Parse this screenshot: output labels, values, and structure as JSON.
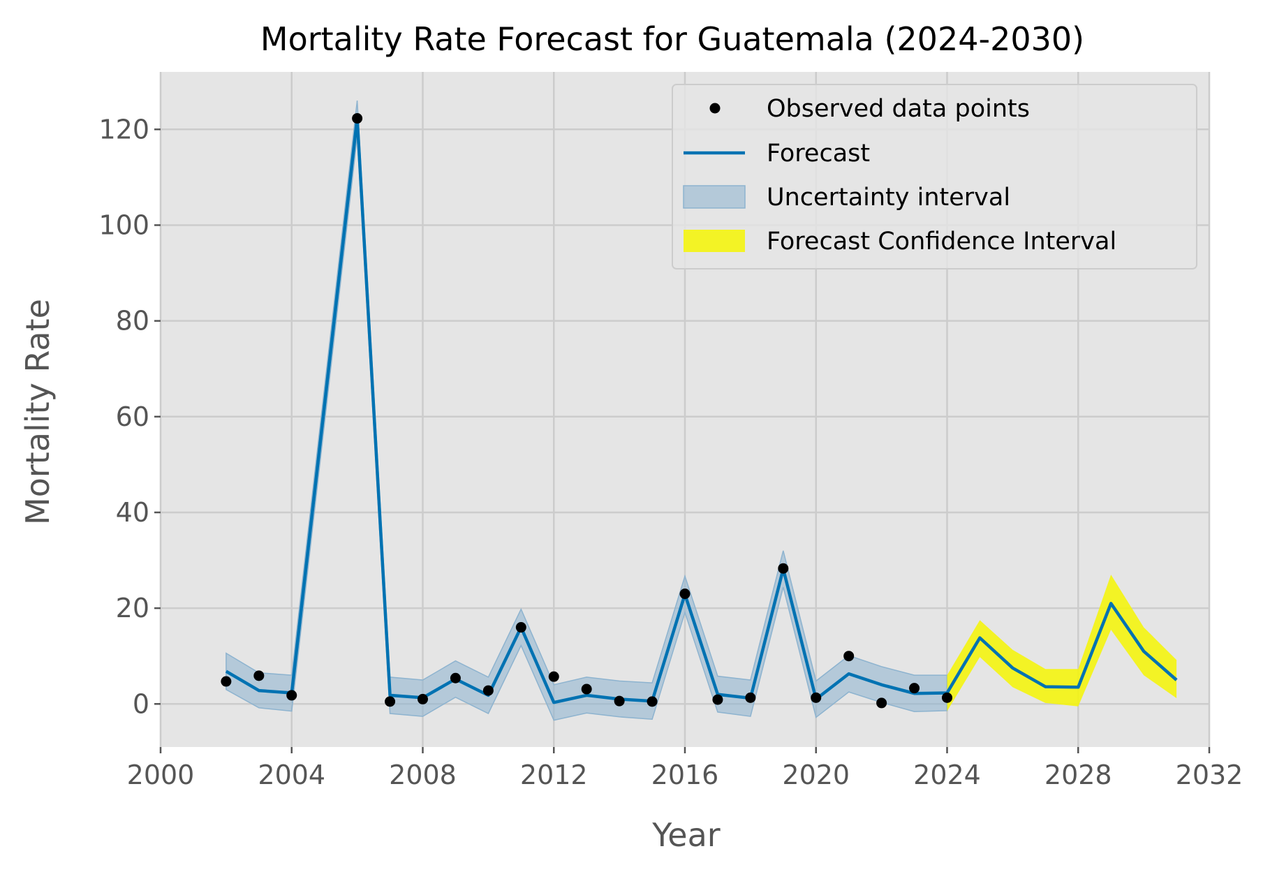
{
  "chart_data": {
    "type": "line",
    "title": "Mortality Rate Forecast for Guatemala (2024-2030)",
    "xlabel": "Year",
    "ylabel": "Mortality Rate",
    "xlim": [
      2000,
      2032
    ],
    "ylim": [
      -9,
      132
    ],
    "xticks": [
      "2000",
      "2004",
      "2008",
      "2012",
      "2016",
      "2020",
      "2024",
      "2028",
      "2032"
    ],
    "yticks": [
      "0",
      "20",
      "40",
      "60",
      "80",
      "100",
      "120"
    ],
    "grid": true,
    "legend_position": "top-right",
    "colors": {
      "background": "#e5e5e5",
      "grid": "#cccccc",
      "observed": "#000000",
      "forecast": "#0072b2",
      "uncertainty": "#8db3cf",
      "confidence": "#f5f50a"
    },
    "legend": [
      {
        "label": "Observed data points",
        "kind": "marker"
      },
      {
        "label": "Forecast",
        "kind": "line"
      },
      {
        "label": "Uncertainty interval",
        "kind": "band"
      },
      {
        "label": "Forecast Confidence Interval",
        "kind": "confidence"
      }
    ],
    "observed": {
      "x": [
        2002,
        2003,
        2004,
        2006,
        2007,
        2008,
        2009,
        2010,
        2011,
        2012,
        2013,
        2014,
        2015,
        2016,
        2017,
        2018,
        2019,
        2020,
        2021,
        2022,
        2023,
        2024
      ],
      "y": [
        4.7,
        5.9,
        1.8,
        122.3,
        0.5,
        1.0,
        5.4,
        2.8,
        16.0,
        5.7,
        3.1,
        0.6,
        0.5,
        23.0,
        0.9,
        1.3,
        28.3,
        1.3,
        10.0,
        0.2,
        3.3,
        1.3
      ]
    },
    "forecast": {
      "x": [
        2002,
        2003,
        2004,
        2006,
        2007,
        2008,
        2009,
        2010,
        2011,
        2012,
        2013,
        2014,
        2015,
        2016,
        2017,
        2018,
        2019,
        2020,
        2021,
        2022,
        2023,
        2024,
        2025,
        2026,
        2027,
        2028,
        2029,
        2030,
        2031
      ],
      "y": [
        6.8,
        2.8,
        2.3,
        122.3,
        1.8,
        1.3,
        5.2,
        1.8,
        16.0,
        0.3,
        1.8,
        1.0,
        0.6,
        22.9,
        2.0,
        1.2,
        28.2,
        1.0,
        6.3,
        4.0,
        2.2,
        2.3,
        13.8,
        7.5,
        3.6,
        3.5,
        21.0,
        11.0,
        5.0
      ]
    },
    "uncertainty_interval": {
      "x": [
        2002,
        2003,
        2004,
        2006,
        2007,
        2008,
        2009,
        2010,
        2011,
        2012,
        2013,
        2014,
        2015,
        2016,
        2017,
        2018,
        2019,
        2020,
        2021,
        2022,
        2023,
        2024
      ],
      "lower": [
        3.0,
        -0.8,
        -1.5,
        118.5,
        -2.0,
        -2.6,
        1.4,
        -2.0,
        12.2,
        -3.4,
        -1.9,
        -2.7,
        -3.2,
        19.1,
        -1.7,
        -2.6,
        24.4,
        -2.8,
        2.5,
        0.3,
        -1.6,
        -1.4
      ],
      "upper": [
        10.6,
        6.5,
        6.0,
        126.0,
        5.6,
        5.0,
        9.0,
        5.6,
        19.8,
        4.0,
        5.6,
        4.8,
        4.4,
        26.7,
        5.8,
        5.0,
        32.0,
        4.8,
        10.1,
        7.8,
        6.0,
        6.0
      ]
    },
    "confidence_interval": {
      "x": [
        2024,
        2025,
        2026,
        2027,
        2028,
        2029,
        2030,
        2031
      ],
      "lower": [
        -1.5,
        9.8,
        3.5,
        0.2,
        -0.5,
        15.5,
        6.0,
        1.2
      ],
      "upper": [
        6.0,
        17.5,
        11.3,
        7.3,
        7.3,
        27.0,
        16.0,
        9.2
      ]
    }
  }
}
